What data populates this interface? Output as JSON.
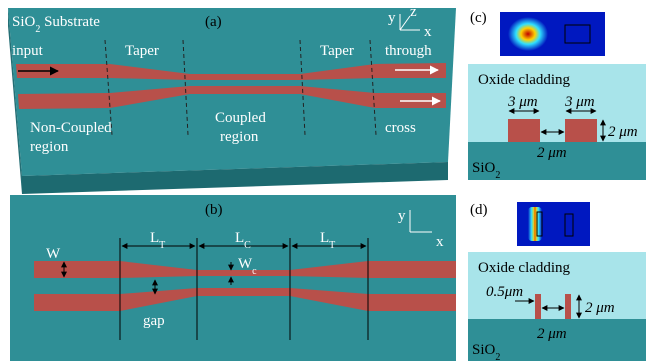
{
  "panel_a": {
    "label": "(a)",
    "substrate": {
      "text": "SiO",
      "sub": "2",
      "rest": " Substrate"
    },
    "input": "input",
    "taper_left": "Taper",
    "taper_right": "Taper",
    "through": "through",
    "cross": "cross",
    "non_coupled": [
      "Non-Coupled",
      "region"
    ],
    "coupled": [
      "Coupled",
      "region"
    ],
    "axes": {
      "y": "y",
      "z": "z",
      "x": "x"
    }
  },
  "panel_b": {
    "label": "(b)",
    "w": "W",
    "lt_left": {
      "text": "L",
      "sub": "T"
    },
    "lc": {
      "text": "L",
      "sub": "C"
    },
    "lt_right": {
      "text": "L",
      "sub": "T"
    },
    "wc": {
      "text": "W",
      "sub": "c"
    },
    "gap": "gap",
    "axes": {
      "y": "y",
      "x": "x"
    }
  },
  "panel_c": {
    "label": "(c)",
    "cladding": "Oxide cladding",
    "width_left": "3 μm",
    "width_right": "3 μm",
    "height": "2 μm",
    "gap": "2 μm",
    "substrate": {
      "text": "SiO",
      "sub": "2"
    }
  },
  "panel_d": {
    "label": "(d)",
    "cladding": "Oxide cladding",
    "width": "0.5μm",
    "height": "2 μm",
    "gap": "2 μm",
    "substrate": {
      "text": "SiO",
      "sub": "2"
    }
  }
}
